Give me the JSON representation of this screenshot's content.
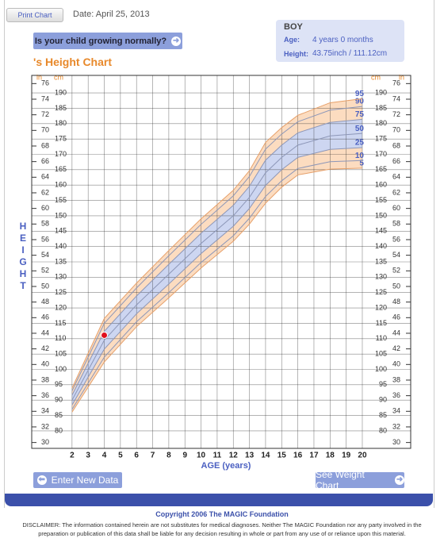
{
  "header": {
    "print_button": "Print Chart",
    "date": "Date: April 25, 2013",
    "question_button": "Is your child growing normally?",
    "chart_title": "'s Height Chart"
  },
  "profile": {
    "sex": "BOY",
    "age_label": "Age:",
    "age": "4 years 0 months",
    "height_label": "Height:",
    "height": "43.75inch / 111.12cm"
  },
  "chart_data": {
    "type": "line",
    "y_label": "HEIGHT",
    "x_label": "AGE (years)",
    "y_unit": "cm",
    "y2_unit": "in",
    "x": [
      2,
      4,
      6,
      8,
      10,
      12,
      13,
      14,
      15,
      16,
      18,
      20
    ],
    "series": [
      {
        "name": "5",
        "color": "#e6a06a",
        "values": [
          86.1,
          102.4,
          113.9,
          123.3,
          133,
          141.7,
          147.3,
          154.1,
          159.3,
          163.3,
          165.2,
          165.5
        ]
      },
      {
        "name": "10",
        "color": "#8d97b8",
        "fill": "#fcdcc0",
        "values": [
          87.0,
          104.0,
          115.5,
          125.0,
          134.8,
          143.5,
          149.2,
          156.3,
          161.4,
          165.4,
          167.6,
          168.0
        ]
      },
      {
        "name": "25",
        "color": "#8d97b8",
        "fill": "#fcdcc0",
        "values": [
          88.4,
          106.6,
          118.1,
          127.8,
          137.7,
          146.6,
          152.4,
          159.9,
          165.0,
          169.0,
          171.6,
          172.2
        ]
      },
      {
        "name": "50",
        "color": "#8d97b8",
        "fill": "#cdd6f1",
        "values": [
          90,
          109.5,
          121,
          131,
          141,
          150,
          156,
          164,
          169,
          173,
          176,
          176.8
        ]
      },
      {
        "name": "75",
        "color": "#8d97b8",
        "fill": "#cdd6f1",
        "values": [
          91.6,
          112.4,
          123.9,
          134.2,
          144.3,
          153.4,
          159.6,
          168.1,
          173.0,
          177.0,
          180.4,
          181.4
        ]
      },
      {
        "name": "90",
        "color": "#8d97b8",
        "fill": "#fcdcc0",
        "values": [
          93.0,
          115.0,
          126.5,
          137.0,
          147.2,
          156.5,
          162.8,
          171.7,
          176.6,
          180.6,
          184.4,
          185.6
        ]
      },
      {
        "name": "95",
        "color": "#e6a06a",
        "fill": "#fcdcc0",
        "values": [
          93.9,
          116.6,
          128.1,
          138.7,
          149,
          158.3,
          164.7,
          173.9,
          178.7,
          182.7,
          186.8,
          188.1
        ]
      }
    ],
    "point": {
      "x": 4,
      "y": 111.12,
      "color": "#e0101e"
    },
    "xlim": [
      -0.5,
      23
    ],
    "xticks": [
      2,
      3,
      4,
      5,
      6,
      7,
      8,
      9,
      10,
      11,
      12,
      13,
      14,
      15,
      16,
      17,
      18,
      19,
      20
    ],
    "ylim": [
      74.3,
      195.7
    ],
    "yticks": [
      80,
      85,
      90,
      95,
      100,
      105,
      110,
      115,
      120,
      125,
      130,
      135,
      140,
      145,
      150,
      155,
      160,
      165,
      170,
      175,
      180,
      185,
      190
    ],
    "y2lim": [
      29.25,
      77.05
    ],
    "y2ticks": [
      30,
      32,
      34,
      36,
      38,
      40,
      42,
      44,
      46,
      48,
      50,
      52,
      54,
      56,
      58,
      60,
      62,
      64,
      66,
      68,
      70,
      72,
      74,
      76
    ],
    "grid": true
  },
  "footer": {
    "enter_button": "Enter New Data",
    "weight_button": "See Weight Chart",
    "copyright": "Copyright 2006 The MAGIC Foundation",
    "disclaimer": "DISCLAIMER: The information contained herein are not substitutes for medical diagnoses. Neither The MAGIC Foundation nor any party involved in the preparation or publication of this data shall be liable for any decision resulting in whole or part from any use of or reliance upon this material."
  }
}
